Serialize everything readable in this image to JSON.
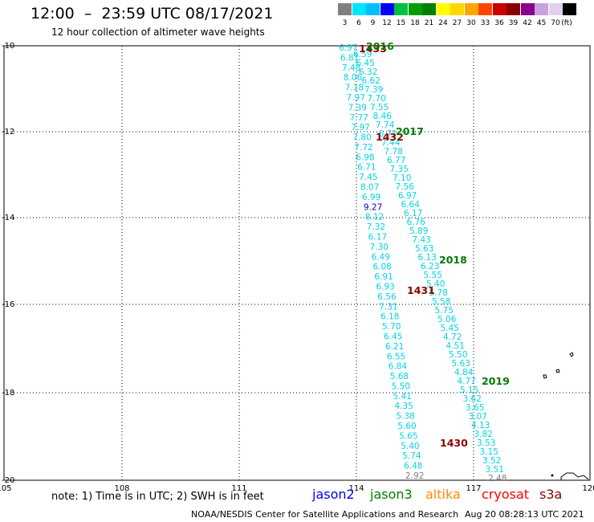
{
  "header": {
    "title": "12:00  –  23:59 UTC 08/17/2021",
    "subtitle": "12 hour collection of altimeter wave heights"
  },
  "colorbar": {
    "unit": "(ft)",
    "bins": [
      {
        "label": "3",
        "color": "#808080"
      },
      {
        "label": "6",
        "color": "#00e5ff"
      },
      {
        "label": "9",
        "color": "#00bfff"
      },
      {
        "label": "12",
        "color": "#0000ff"
      },
      {
        "label": "15",
        "color": "#00c040"
      },
      {
        "label": "18",
        "color": "#00a000"
      },
      {
        "label": "21",
        "color": "#008000"
      },
      {
        "label": "24",
        "color": "#ffff00"
      },
      {
        "label": "27",
        "color": "#ffd700"
      },
      {
        "label": "30",
        "color": "#ffa500"
      },
      {
        "label": "33",
        "color": "#ff4500"
      },
      {
        "label": "36",
        "color": "#cc0000"
      },
      {
        "label": "39",
        "color": "#8b0000"
      },
      {
        "label": "42",
        "color": "#8b008b"
      },
      {
        "label": "45",
        "color": "#c8a0e0"
      },
      {
        "label": "70",
        "color": "#e0d0f0"
      },
      {
        "label": "",
        "color": "#000000"
      }
    ]
  },
  "map": {
    "lat_labels": [
      "-10",
      "-12",
      "-14",
      "-16",
      "-18",
      "-20"
    ],
    "lon_labels": [
      "105",
      "108",
      "111",
      "114",
      "117",
      "120"
    ],
    "tracks": [
      {
        "id": "west",
        "color": "#00d4e8",
        "values": [
          "6.97",
          "6.81",
          "7.48",
          "8.06",
          "7.18",
          "7.97",
          "7.39",
          "7.77",
          "7.97",
          "7.80",
          "7.72",
          "6.98",
          "6.71",
          "7.45",
          "8.07",
          "6.99",
          "9.27",
          "8.12",
          "7.32",
          "6.17",
          "7.30",
          "6.49",
          "6.08",
          "6.91",
          "6.93",
          "6.56",
          "7.31",
          "6.18",
          "5.70",
          "6.45",
          "6.21",
          "6.55",
          "6.84",
          "5.68",
          "5.50",
          "5.41",
          "4.35",
          "5.38",
          "5.60",
          "5.65",
          "5.40",
          "5.74",
          "6.48",
          "2.92"
        ],
        "highlight": {
          "9.27": "#0000cc",
          "2.92": "#808080"
        }
      },
      {
        "id": "east",
        "color": "#00d4e8",
        "values": [
          "6.59",
          "6.45",
          "6.32",
          "6.62",
          "7.39",
          "7.70",
          "7.55",
          "8.46",
          "7.74",
          "6.71",
          "7.44",
          "7.78",
          "6.77",
          "7.35",
          "7.10",
          "7.56",
          "6.97",
          "6.64",
          "6.17",
          "6.76",
          "5.89",
          "7.43",
          "5.63",
          "6.13",
          "6.23",
          "5.55",
          "5.40",
          "5.78",
          "5.58",
          "5.75",
          "5.06",
          "5.45",
          "4.72",
          "4.51",
          "5.50",
          "5.63",
          "4.84",
          "4.77",
          "5.15",
          "3.62",
          "3.65",
          "3.07",
          "4.13",
          "3.82",
          "3.53",
          "3.15",
          "3.52",
          "3.51",
          "2.48"
        ],
        "highlight": {
          "2.48": "#808080"
        }
      }
    ],
    "time_labels": [
      {
        "text": "1433",
        "color": "#8b0000"
      },
      {
        "text": "2016",
        "color": "#007a00"
      },
      {
        "text": "1432",
        "color": "#8b0000"
      },
      {
        "text": "2017",
        "color": "#007a00"
      },
      {
        "text": "2018",
        "color": "#007a00"
      },
      {
        "text": "1431",
        "color": "#8b0000"
      },
      {
        "text": "2019",
        "color": "#007a00"
      },
      {
        "text": "1430",
        "color": "#8b0000"
      }
    ]
  },
  "footer": {
    "note": "note:  1) Time is in UTC;  2) SWH is in feet",
    "satellites": [
      {
        "name": "jason2",
        "color": "#0000ee"
      },
      {
        "name": "jason3",
        "color": "#008000"
      },
      {
        "name": "altika",
        "color": "#ff8c00"
      },
      {
        "name": "cryosat",
        "color": "#ff0000"
      },
      {
        "name": "s3a",
        "color": "#8b0000"
      }
    ],
    "credit": "NOAA/NESDIS Center for Satellite Applications and Research",
    "timestamp": "Aug 20 08:28:13 UTC 2021"
  }
}
